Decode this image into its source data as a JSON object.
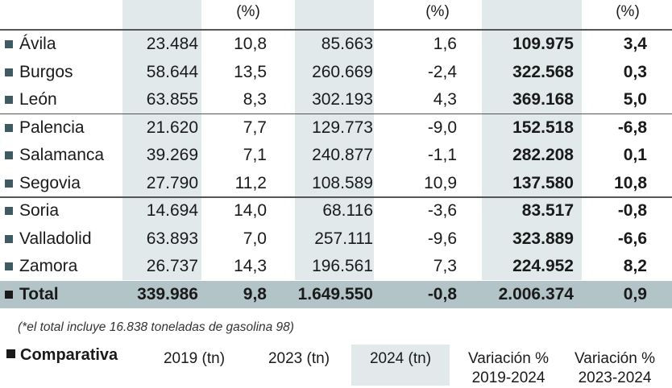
{
  "header": {
    "col2_unit": "(%)",
    "col4_unit": "(%)",
    "col6_unit": "(%)"
  },
  "rows": [
    {
      "name": "Ávila",
      "v2023": "23.484",
      "p1": "10,8",
      "v2019": "85.663",
      "p2": "1,6",
      "v2024": "109.975",
      "p3": "3,4"
    },
    {
      "name": "Burgos",
      "v2023": "58.644",
      "p1": "13,5",
      "v2019": "260.669",
      "p2": "-2,4",
      "v2024": "322.568",
      "p3": "0,3"
    },
    {
      "name": "León",
      "v2023": "63.855",
      "p1": "8,3",
      "v2019": "302.193",
      "p2": "4,3",
      "v2024": "369.168",
      "p3": "5,0"
    },
    {
      "name": "Palencia",
      "v2023": "21.620",
      "p1": "7,7",
      "v2019": "129.773",
      "p2": "-9,0",
      "v2024": "152.518",
      "p3": "-6,8"
    },
    {
      "name": "Salamanca",
      "v2023": "39.269",
      "p1": "7,1",
      "v2019": "240.877",
      "p2": "-1,1",
      "v2024": "282.208",
      "p3": "0,1"
    },
    {
      "name": "Segovia",
      "v2023": "27.790",
      "p1": "11,2",
      "v2019": "108.589",
      "p2": "10,9",
      "v2024": "137.580",
      "p3": "10,8"
    },
    {
      "name": "Soria",
      "v2023": "14.694",
      "p1": "14,0",
      "v2019": "68.116",
      "p2": "-3,6",
      "v2024": "83.517",
      "p3": "-0,8"
    },
    {
      "name": "Valladolid",
      "v2023": "63.893",
      "p1": "7,0",
      "v2019": "257.111",
      "p2": "-9,6",
      "v2024": "323.889",
      "p3": "-6,6"
    },
    {
      "name": "Zamora",
      "v2023": "26.737",
      "p1": "14,3",
      "v2019": "196.561",
      "p2": "7,3",
      "v2024": "224.952",
      "p3": "8,2"
    }
  ],
  "total": {
    "name": "Total",
    "v2023": "339.986",
    "p1": "9,8",
    "v2019": "1.649.550",
    "p2": "-0,8",
    "v2024": "2.006.374",
    "p3": "0,9"
  },
  "note": "(*el total incluye 16.838 toneladas de gasolina 98)",
  "comparativa": {
    "title": "Comparativa",
    "headers": [
      "2019 (tn)",
      "2023 (tn)",
      "2024 (tn)",
      "Variación %",
      "Variación %"
    ],
    "subheaders": [
      "2019-2024",
      "2023-2024"
    ]
  },
  "colors": {
    "shade": "#e1e9eb",
    "total_bg": "#b3c4c8",
    "bullet": "#3f5a63"
  }
}
